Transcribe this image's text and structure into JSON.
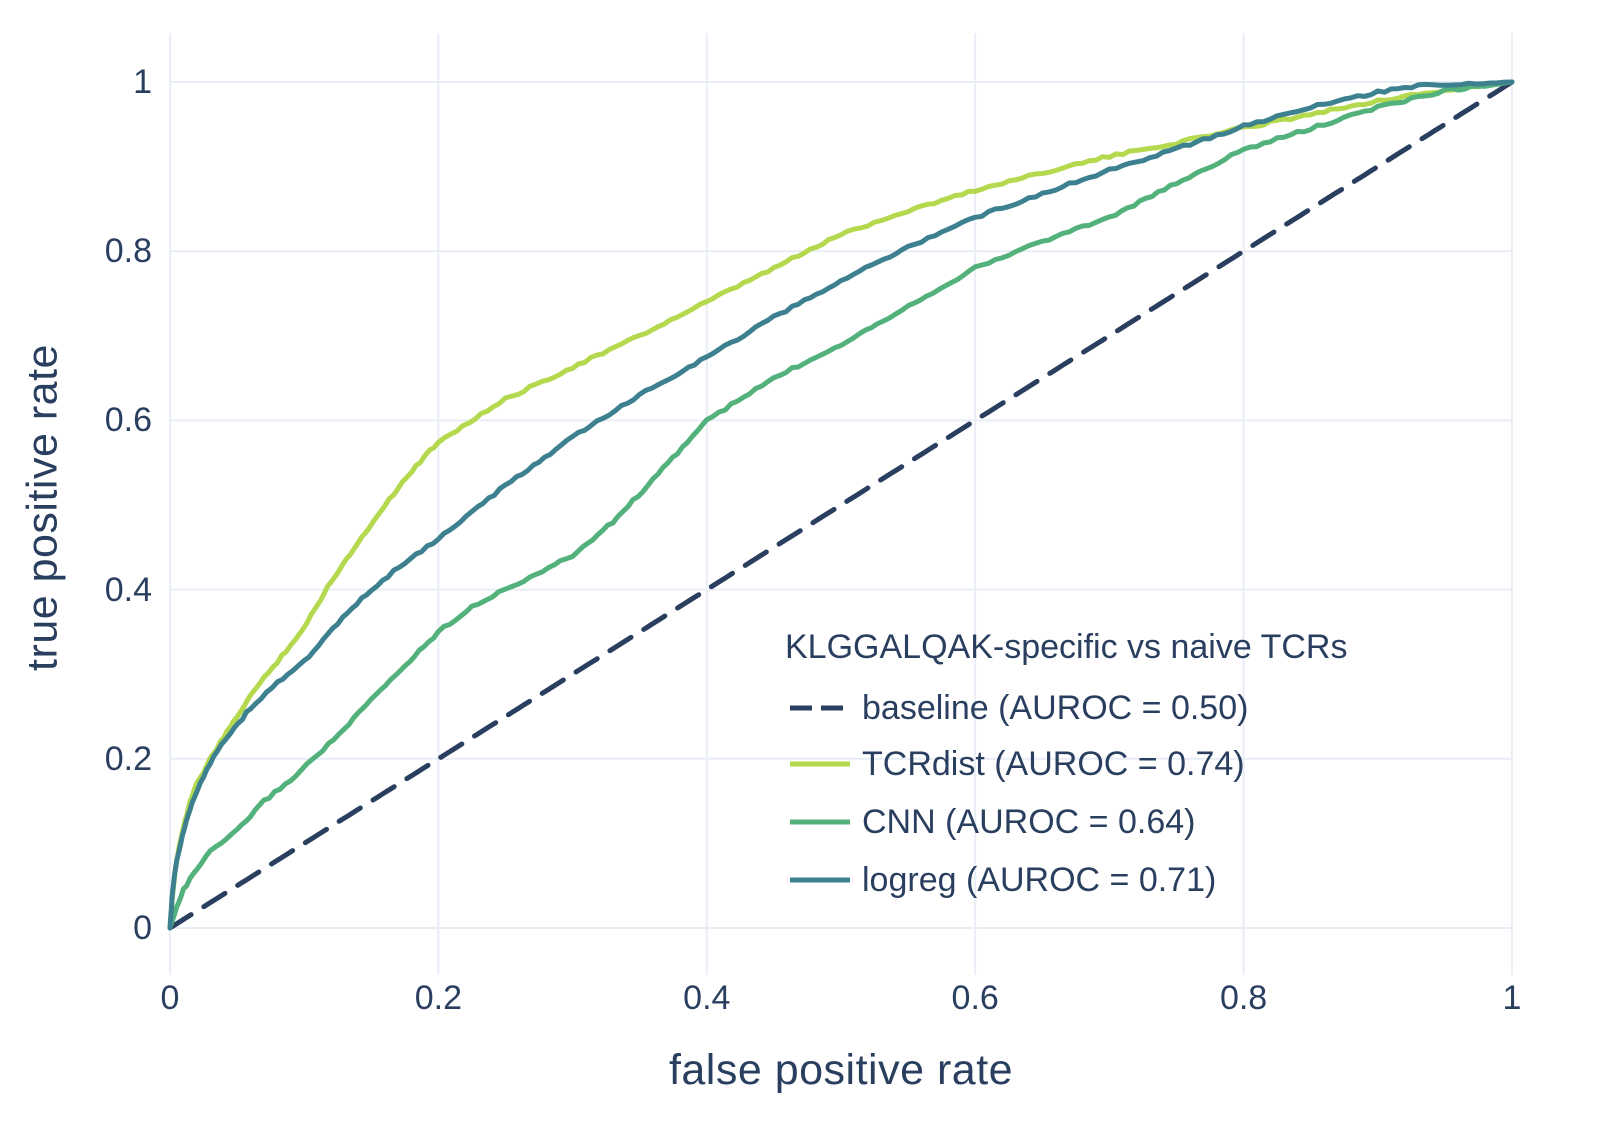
{
  "figure": {
    "background_color": "#ffffff",
    "grid_color": "#e9edf5",
    "text_color": "#2a3f5f"
  },
  "chart_data": {
    "type": "line",
    "title": "",
    "xlabel": "false positive rate",
    "ylabel": "true positive rate",
    "xlim": [
      0,
      1
    ],
    "ylim": [
      0,
      1
    ],
    "grid": true,
    "legend_position": "inside lower-right",
    "legend_title": "KLGGALQAK-specific vs naive TCRs",
    "x_ticks": [
      {
        "value": 0,
        "label": "0"
      },
      {
        "value": 0.2,
        "label": "0.2"
      },
      {
        "value": 0.4,
        "label": "0.4"
      },
      {
        "value": 0.6,
        "label": "0.6"
      },
      {
        "value": 0.8,
        "label": "0.8"
      },
      {
        "value": 1,
        "label": "1"
      }
    ],
    "y_ticks": [
      {
        "value": 0,
        "label": "0"
      },
      {
        "value": 0.2,
        "label": "0.2"
      },
      {
        "value": 0.4,
        "label": "0.4"
      },
      {
        "value": 0.6,
        "label": "0.6"
      },
      {
        "value": 0.8,
        "label": "0.8"
      },
      {
        "value": 1,
        "label": "1"
      }
    ],
    "series": [
      {
        "key": "baseline",
        "name": "baseline (AUROC = 0.50)",
        "auroc": 0.5,
        "color": "#2a3f5f",
        "line_style": "dashed",
        "x": [
          0,
          1
        ],
        "y": [
          0,
          1
        ]
      },
      {
        "key": "tcrdist",
        "name": "TCRdist (AUROC = 0.74)",
        "auroc": 0.74,
        "color": "#b4d94e",
        "line_style": "solid",
        "x": [
          0,
          0.002,
          0.004,
          0.006,
          0.01,
          0.015,
          0.02,
          0.03,
          0.04,
          0.05,
          0.06,
          0.08,
          0.1,
          0.12,
          0.14,
          0.16,
          0.18,
          0.2,
          0.25,
          0.3,
          0.35,
          0.4,
          0.45,
          0.5,
          0.55,
          0.6,
          0.65,
          0.7,
          0.75,
          0.8,
          0.85,
          0.9,
          0.95,
          1
        ],
        "y": [
          0,
          0.04,
          0.07,
          0.09,
          0.12,
          0.15,
          0.17,
          0.2,
          0.225,
          0.25,
          0.275,
          0.315,
          0.355,
          0.41,
          0.455,
          0.5,
          0.54,
          0.575,
          0.625,
          0.663,
          0.7,
          0.74,
          0.78,
          0.82,
          0.848,
          0.872,
          0.893,
          0.912,
          0.928,
          0.946,
          0.962,
          0.978,
          0.99,
          1
        ]
      },
      {
        "key": "cnn",
        "name": "CNN (AUROC = 0.64)",
        "auroc": 0.64,
        "color": "#53b17b",
        "line_style": "solid",
        "x": [
          0,
          0.005,
          0.01,
          0.02,
          0.03,
          0.05,
          0.07,
          0.09,
          0.11,
          0.13,
          0.15,
          0.175,
          0.2,
          0.225,
          0.25,
          0.3,
          0.33,
          0.36,
          0.4,
          0.45,
          0.5,
          0.55,
          0.6,
          0.65,
          0.7,
          0.75,
          0.8,
          0.85,
          0.9,
          0.95,
          1
        ],
        "y": [
          0,
          0.025,
          0.045,
          0.07,
          0.09,
          0.115,
          0.15,
          0.175,
          0.205,
          0.235,
          0.27,
          0.31,
          0.35,
          0.38,
          0.4,
          0.44,
          0.48,
          0.53,
          0.6,
          0.65,
          0.69,
          0.735,
          0.78,
          0.812,
          0.84,
          0.88,
          0.92,
          0.945,
          0.97,
          0.99,
          1
        ]
      },
      {
        "key": "logreg",
        "name": "logreg (AUROC = 0.71)",
        "auroc": 0.71,
        "color": "#3d808f",
        "line_style": "solid",
        "x": [
          0,
          0.002,
          0.005,
          0.008,
          0.012,
          0.018,
          0.025,
          0.035,
          0.045,
          0.06,
          0.08,
          0.1,
          0.125,
          0.15,
          0.175,
          0.2,
          0.25,
          0.3,
          0.35,
          0.4,
          0.45,
          0.5,
          0.55,
          0.6,
          0.65,
          0.7,
          0.75,
          0.8,
          0.85,
          0.9,
          0.93,
          1
        ],
        "y": [
          0,
          0.045,
          0.08,
          0.1,
          0.125,
          0.155,
          0.18,
          0.21,
          0.23,
          0.26,
          0.29,
          0.315,
          0.36,
          0.4,
          0.432,
          0.46,
          0.523,
          0.58,
          0.63,
          0.675,
          0.722,
          0.765,
          0.805,
          0.84,
          0.868,
          0.896,
          0.921,
          0.948,
          0.97,
          0.988,
          0.996,
          1
        ]
      }
    ]
  }
}
